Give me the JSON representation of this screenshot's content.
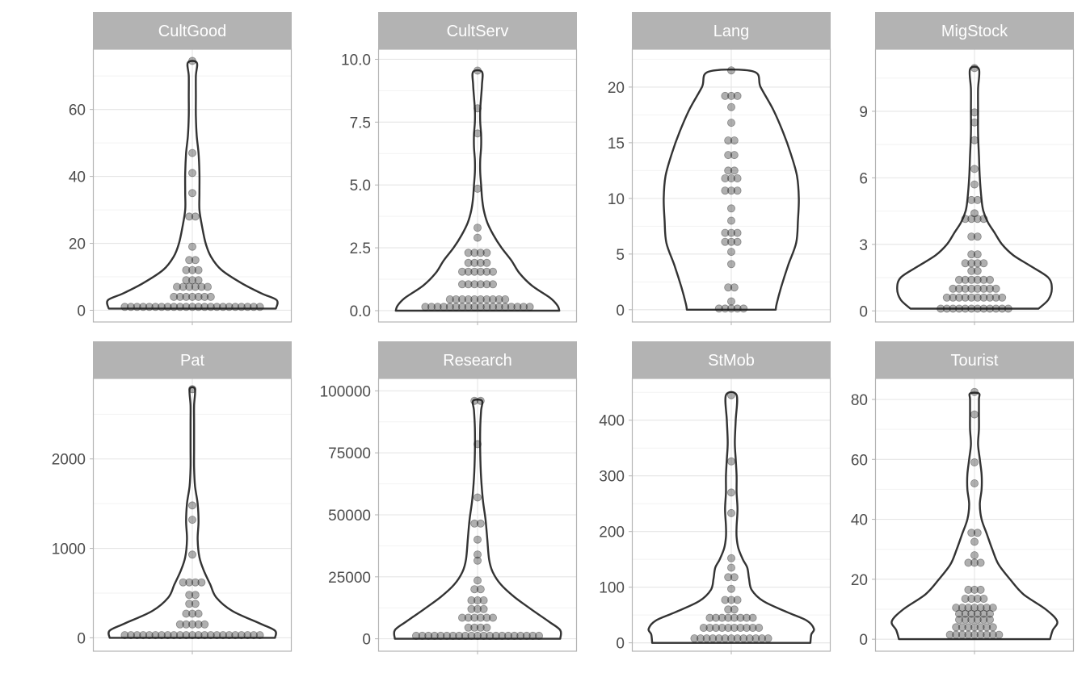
{
  "chart_data": {
    "type": "violin",
    "layout": "facets 2x4, free y scales, violin with dot overlay",
    "grid": true,
    "colors": {
      "strip_fill": "#b3b3b3",
      "strip_text": "#ffffff",
      "panel_border": "#b3b3b3",
      "grid": "#e5e5e5",
      "violin_line": "#333333",
      "points": "#1a1a1a"
    },
    "panels": [
      {
        "name": "CultGood",
        "ylim": [
          -3.5,
          78
        ],
        "yticks": [
          0,
          20,
          40,
          60
        ],
        "ytick_labels": [
          "0",
          "20",
          "40",
          "60"
        ],
        "violin_width": [
          [
            0.5,
            0.94
          ],
          [
            3,
            0.95
          ],
          [
            5,
            0.78
          ],
          [
            8,
            0.56
          ],
          [
            12,
            0.33
          ],
          [
            16,
            0.21
          ],
          [
            20,
            0.15
          ],
          [
            25,
            0.11
          ],
          [
            30,
            0.08
          ],
          [
            35,
            0.08
          ],
          [
            41,
            0.08
          ],
          [
            47,
            0.07
          ],
          [
            52,
            0.05
          ],
          [
            58,
            0.04
          ],
          [
            64,
            0.04
          ],
          [
            70,
            0.04
          ],
          [
            74,
            0.05
          ]
        ],
        "points": [
          {
            "y": 1,
            "n": 23
          },
          {
            "y": 4,
            "n": 7
          },
          {
            "y": 7,
            "n": 6
          },
          {
            "y": 9,
            "n": 3
          },
          {
            "y": 12,
            "n": 3
          },
          {
            "y": 15,
            "n": 2
          },
          {
            "y": 19,
            "n": 1
          },
          {
            "y": 28,
            "n": 2
          },
          {
            "y": 35,
            "n": 1
          },
          {
            "y": 41,
            "n": 1
          },
          {
            "y": 47,
            "n": 1
          },
          {
            "y": 74.5,
            "n": 1
          }
        ]
      },
      {
        "name": "CultServ",
        "ylim": [
          -0.45,
          10.4
        ],
        "yticks": [
          0,
          2.5,
          5,
          7.5,
          10
        ],
        "ytick_labels": [
          "0.0",
          "2.5",
          "5.0",
          "7.5",
          "10.0"
        ],
        "violin_width": [
          [
            0,
            0.92
          ],
          [
            0.2,
            0.9
          ],
          [
            0.5,
            0.82
          ],
          [
            1,
            0.61
          ],
          [
            1.5,
            0.47
          ],
          [
            2,
            0.38
          ],
          [
            2.5,
            0.27
          ],
          [
            3,
            0.18
          ],
          [
            3.5,
            0.11
          ],
          [
            4,
            0.07
          ],
          [
            4.5,
            0.05
          ],
          [
            5,
            0.04
          ],
          [
            5.5,
            0.03
          ],
          [
            6,
            0.03
          ],
          [
            6.5,
            0.04
          ],
          [
            7,
            0.04
          ],
          [
            7.5,
            0.03
          ],
          [
            8,
            0.03
          ],
          [
            8.5,
            0.04
          ],
          [
            9,
            0.05
          ],
          [
            9.5,
            0.05
          ]
        ],
        "points": [
          {
            "y": 0.15,
            "n": 18
          },
          {
            "y": 0.45,
            "n": 10
          },
          {
            "y": 1.05,
            "n": 6
          },
          {
            "y": 1.55,
            "n": 6
          },
          {
            "y": 1.9,
            "n": 4
          },
          {
            "y": 2.3,
            "n": 4
          },
          {
            "y": 2.9,
            "n": 1
          },
          {
            "y": 3.3,
            "n": 1
          },
          {
            "y": 4.85,
            "n": 1
          },
          {
            "y": 7.05,
            "n": 1
          },
          {
            "y": 8.05,
            "n": 1
          },
          {
            "y": 9.55,
            "n": 1
          }
        ]
      },
      {
        "name": "Lang",
        "ylim": [
          -1.1,
          23.4
        ],
        "yticks": [
          0,
          5,
          10,
          15,
          20
        ],
        "ytick_labels": [
          "0",
          "5",
          "10",
          "15",
          "20"
        ],
        "violin_width": [
          [
            0,
            0.5
          ],
          [
            0.5,
            0.51
          ],
          [
            2,
            0.56
          ],
          [
            4,
            0.64
          ],
          [
            6,
            0.73
          ],
          [
            8,
            0.75
          ],
          [
            10,
            0.76
          ],
          [
            12,
            0.74
          ],
          [
            14,
            0.67
          ],
          [
            16,
            0.58
          ],
          [
            18,
            0.47
          ],
          [
            20,
            0.33
          ],
          [
            21.4,
            0.25
          ]
        ],
        "points": [
          {
            "y": 0.1,
            "n": 5
          },
          {
            "y": 0.75,
            "n": 1
          },
          {
            "y": 2,
            "n": 2
          },
          {
            "y": 4.1,
            "n": 1
          },
          {
            "y": 5.2,
            "n": 1
          },
          {
            "y": 6.1,
            "n": 3
          },
          {
            "y": 6.9,
            "n": 3
          },
          {
            "y": 8,
            "n": 1
          },
          {
            "y": 9.1,
            "n": 1
          },
          {
            "y": 10.7,
            "n": 3
          },
          {
            "y": 11.8,
            "n": 3
          },
          {
            "y": 12.5,
            "n": 2
          },
          {
            "y": 13.9,
            "n": 2
          },
          {
            "y": 15.2,
            "n": 2
          },
          {
            "y": 16.8,
            "n": 1
          },
          {
            "y": 18.2,
            "n": 1
          },
          {
            "y": 19.2,
            "n": 3
          },
          {
            "y": 21.5,
            "n": 1
          }
        ]
      },
      {
        "name": "MigStock",
        "ylim": [
          -0.5,
          11.8
        ],
        "yticks": [
          0,
          3,
          6,
          9
        ],
        "ytick_labels": [
          "0",
          "3",
          "6",
          "9"
        ],
        "violin_width": [
          [
            0.1,
            0.72
          ],
          [
            0.5,
            0.83
          ],
          [
            1,
            0.87
          ],
          [
            1.5,
            0.83
          ],
          [
            2,
            0.64
          ],
          [
            2.5,
            0.44
          ],
          [
            3,
            0.31
          ],
          [
            3.5,
            0.23
          ],
          [
            4,
            0.15
          ],
          [
            4.5,
            0.1
          ],
          [
            5,
            0.08
          ],
          [
            6,
            0.06
          ],
          [
            7,
            0.05
          ],
          [
            8,
            0.04
          ],
          [
            9,
            0.04
          ],
          [
            10,
            0.04
          ],
          [
            10.9,
            0.05
          ]
        ],
        "points": [
          {
            "y": 0.1,
            "n": 12
          },
          {
            "y": 0.6,
            "n": 10
          },
          {
            "y": 1.0,
            "n": 8
          },
          {
            "y": 1.4,
            "n": 6
          },
          {
            "y": 1.8,
            "n": 2
          },
          {
            "y": 2.15,
            "n": 4
          },
          {
            "y": 2.55,
            "n": 2
          },
          {
            "y": 3.35,
            "n": 2
          },
          {
            "y": 4.15,
            "n": 4
          },
          {
            "y": 4.4,
            "n": 1
          },
          {
            "y": 5.0,
            "n": 2
          },
          {
            "y": 5.7,
            "n": 1
          },
          {
            "y": 6.4,
            "n": 1
          },
          {
            "y": 7.7,
            "n": 1
          },
          {
            "y": 8.5,
            "n": 1
          },
          {
            "y": 8.95,
            "n": 1
          },
          {
            "y": 10.95,
            "n": 1
          }
        ]
      },
      {
        "name": "Pat",
        "ylim": [
          -150,
          2900
        ],
        "yticks": [
          0,
          1000,
          2000
        ],
        "ytick_labels": [
          "0",
          "1000",
          "2000"
        ],
        "violin_width": [
          [
            0,
            0.93
          ],
          [
            80,
            0.93
          ],
          [
            160,
            0.76
          ],
          [
            300,
            0.45
          ],
          [
            450,
            0.27
          ],
          [
            600,
            0.2
          ],
          [
            750,
            0.13
          ],
          [
            900,
            0.08
          ],
          [
            1100,
            0.06
          ],
          [
            1300,
            0.07
          ],
          [
            1500,
            0.06
          ],
          [
            1700,
            0.03
          ],
          [
            1900,
            0.02
          ],
          [
            2100,
            0.02
          ],
          [
            2400,
            0.02
          ],
          [
            2600,
            0.02
          ],
          [
            2780,
            0.03
          ]
        ],
        "points": [
          {
            "y": 30,
            "n": 23
          },
          {
            "y": 150,
            "n": 5
          },
          {
            "y": 270,
            "n": 3
          },
          {
            "y": 380,
            "n": 2
          },
          {
            "y": 480,
            "n": 2
          },
          {
            "y": 620,
            "n": 4
          },
          {
            "y": 930,
            "n": 1
          },
          {
            "y": 1320,
            "n": 1
          },
          {
            "y": 1480,
            "n": 1
          },
          {
            "y": 2780,
            "n": 1
          }
        ]
      },
      {
        "name": "Research",
        "ylim": [
          -5000,
          105000
        ],
        "yticks": [
          0,
          25000,
          50000,
          75000,
          100000
        ],
        "ytick_labels": [
          "0",
          "25000",
          "50000",
          "75000",
          "100000"
        ],
        "violin_width": [
          [
            0,
            0.93
          ],
          [
            3500,
            0.93
          ],
          [
            7000,
            0.8
          ],
          [
            12000,
            0.6
          ],
          [
            17000,
            0.41
          ],
          [
            22000,
            0.26
          ],
          [
            27000,
            0.17
          ],
          [
            32000,
            0.13
          ],
          [
            40000,
            0.11
          ],
          [
            48000,
            0.09
          ],
          [
            56000,
            0.06
          ],
          [
            65000,
            0.04
          ],
          [
            75000,
            0.03
          ],
          [
            85000,
            0.03
          ],
          [
            92000,
            0.04
          ],
          [
            96000,
            0.05
          ]
        ],
        "points": [
          {
            "y": 1200,
            "n": 21
          },
          {
            "y": 4500,
            "n": 4
          },
          {
            "y": 8500,
            "n": 6
          },
          {
            "y": 12000,
            "n": 3
          },
          {
            "y": 15500,
            "n": 3
          },
          {
            "y": 20000,
            "n": 2
          },
          {
            "y": 23500,
            "n": 1
          },
          {
            "y": 31500,
            "n": 1
          },
          {
            "y": 34000,
            "n": 1
          },
          {
            "y": 40000,
            "n": 1
          },
          {
            "y": 46500,
            "n": 2
          },
          {
            "y": 57000,
            "n": 1
          },
          {
            "y": 78500,
            "n": 1
          },
          {
            "y": 96000,
            "n": 2
          }
        ]
      },
      {
        "name": "StMob",
        "ylim": [
          -15,
          475
        ],
        "yticks": [
          0,
          100,
          200,
          300,
          400
        ],
        "ytick_labels": [
          "0",
          "100",
          "200",
          "300",
          "400"
        ],
        "violin_width": [
          [
            0,
            0.89
          ],
          [
            15,
            0.9
          ],
          [
            25,
            0.93
          ],
          [
            40,
            0.85
          ],
          [
            55,
            0.63
          ],
          [
            75,
            0.36
          ],
          [
            95,
            0.23
          ],
          [
            115,
            0.2
          ],
          [
            135,
            0.18
          ],
          [
            150,
            0.13
          ],
          [
            170,
            0.08
          ],
          [
            190,
            0.06
          ],
          [
            210,
            0.06
          ],
          [
            240,
            0.07
          ],
          [
            270,
            0.06
          ],
          [
            300,
            0.06
          ],
          [
            330,
            0.05
          ],
          [
            360,
            0.04
          ],
          [
            400,
            0.05
          ],
          [
            445,
            0.06
          ]
        ],
        "points": [
          {
            "y": 8,
            "n": 13
          },
          {
            "y": 27,
            "n": 10
          },
          {
            "y": 45,
            "n": 8
          },
          {
            "y": 60,
            "n": 2
          },
          {
            "y": 77,
            "n": 3
          },
          {
            "y": 97,
            "n": 1
          },
          {
            "y": 118,
            "n": 2
          },
          {
            "y": 135,
            "n": 1
          },
          {
            "y": 152,
            "n": 1
          },
          {
            "y": 233,
            "n": 1
          },
          {
            "y": 270,
            "n": 1
          },
          {
            "y": 326,
            "n": 1
          },
          {
            "y": 445,
            "n": 1
          }
        ]
      },
      {
        "name": "Tourist",
        "ylim": [
          -4,
          87
        ],
        "yticks": [
          0,
          20,
          40,
          60,
          80
        ],
        "ytick_labels": [
          "0",
          "20",
          "40",
          "60",
          "80"
        ],
        "violin_width": [
          [
            0,
            0.85
          ],
          [
            3,
            0.88
          ],
          [
            6,
            0.93
          ],
          [
            10,
            0.8
          ],
          [
            15,
            0.55
          ],
          [
            20,
            0.4
          ],
          [
            25,
            0.27
          ],
          [
            30,
            0.2
          ],
          [
            35,
            0.14
          ],
          [
            40,
            0.08
          ],
          [
            45,
            0.06
          ],
          [
            50,
            0.08
          ],
          [
            55,
            0.08
          ],
          [
            60,
            0.06
          ],
          [
            65,
            0.04
          ],
          [
            70,
            0.05
          ],
          [
            75,
            0.05
          ],
          [
            80,
            0.05
          ],
          [
            82,
            0.05
          ]
        ],
        "points": [
          {
            "y": 1.5,
            "n": 9
          },
          {
            "y": 4,
            "n": 7
          },
          {
            "y": 6.5,
            "n": 6
          },
          {
            "y": 8.5,
            "n": 6
          },
          {
            "y": 10.5,
            "n": 7
          },
          {
            "y": 13.5,
            "n": 4
          },
          {
            "y": 16.5,
            "n": 3
          },
          {
            "y": 25.5,
            "n": 3
          },
          {
            "y": 28,
            "n": 1
          },
          {
            "y": 32.5,
            "n": 1
          },
          {
            "y": 35.5,
            "n": 2
          },
          {
            "y": 52,
            "n": 1
          },
          {
            "y": 59,
            "n": 1
          },
          {
            "y": 75,
            "n": 1
          },
          {
            "y": 82.5,
            "n": 1
          }
        ]
      }
    ]
  }
}
